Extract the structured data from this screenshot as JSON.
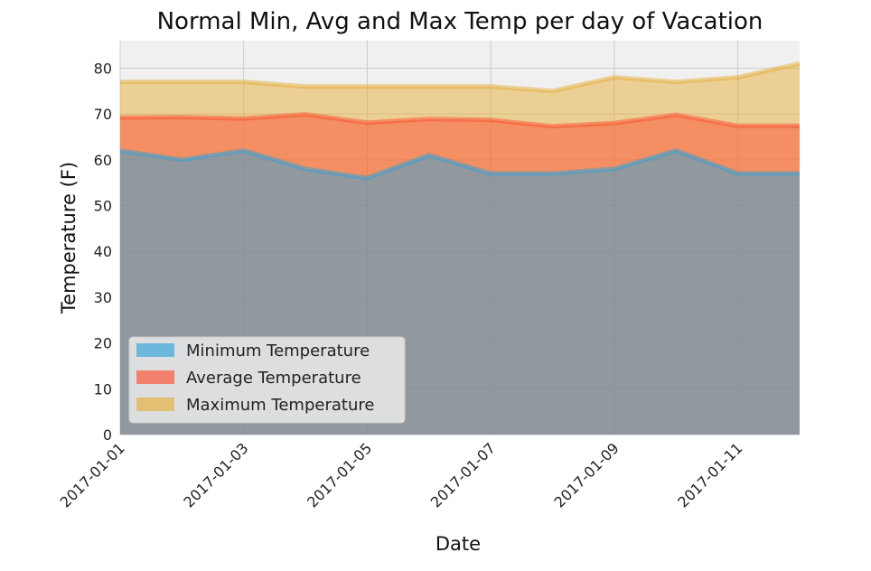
{
  "chart_data": {
    "type": "area",
    "title": "Normal Min, Avg and Max Temp per day of Vacation",
    "xlabel": "Date",
    "ylabel": "Temperature (F)",
    "x": [
      "2017-01-01",
      "2017-01-02",
      "2017-01-03",
      "2017-01-04",
      "2017-01-05",
      "2017-01-06",
      "2017-01-07",
      "2017-01-08",
      "2017-01-09",
      "2017-01-10",
      "2017-01-11",
      "2017-01-12"
    ],
    "xticks": [
      "2017-01-01",
      "2017-01-03",
      "2017-01-05",
      "2017-01-07",
      "2017-01-09",
      "2017-01-11"
    ],
    "ylim": [
      0,
      86
    ],
    "yticks": [
      0,
      10,
      20,
      30,
      40,
      50,
      60,
      70,
      80
    ],
    "grid": true,
    "stacked": false,
    "legend_position": "lower-left",
    "series": [
      {
        "name": "Maximum Temperature",
        "color": "#e5ae38",
        "values": [
          77,
          77,
          77,
          76,
          76,
          76,
          76,
          75,
          78,
          77,
          78,
          81
        ]
      },
      {
        "name": "Average Temperature",
        "color": "#fc4f30",
        "values": [
          69.2,
          69.3,
          69.0,
          69.9,
          68.1,
          68.9,
          68.7,
          67.3,
          68.0,
          69.8,
          67.4,
          67.4
        ]
      },
      {
        "name": "Minimum Temperature",
        "color": "#30a2da",
        "values": [
          62,
          60,
          62,
          58,
          56,
          61,
          57,
          57,
          58,
          62,
          57,
          57
        ]
      }
    ],
    "legend_order": [
      "Minimum Temperature",
      "Average Temperature",
      "Maximum Temperature"
    ]
  }
}
